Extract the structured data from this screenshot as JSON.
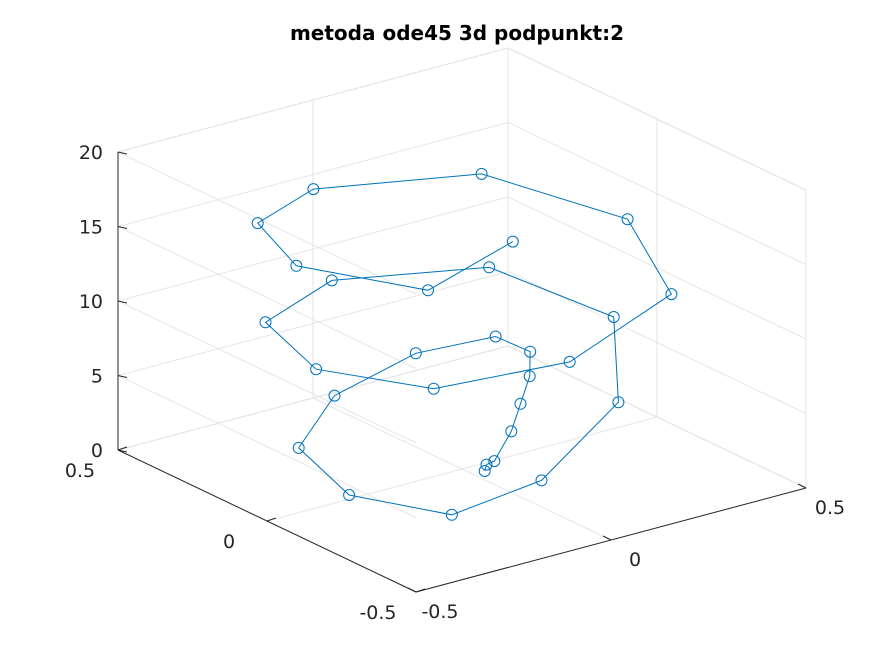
{
  "chart_data": {
    "type": "line3d",
    "title": "metoda ode45 3d podpunkt:2",
    "xlabel": "",
    "ylabel": "",
    "zlabel": "",
    "xlim": [
      -0.5,
      0.5
    ],
    "ylim": [
      -0.5,
      0.5
    ],
    "zlim": [
      0,
      20
    ],
    "xticks": [
      "-0.5",
      "0",
      "0.5"
    ],
    "yticks": [
      "-0.5",
      "0",
      "0.5"
    ],
    "zticks": [
      "0",
      "5",
      "10",
      "15",
      "20"
    ],
    "grid": true,
    "box": true,
    "line_color": "#0072BD",
    "marker": "circle",
    "series": [
      {
        "values": [
          [
            0.02,
            -0.05,
            0.2
          ],
          [
            0.04,
            -0.03,
            0.3
          ],
          [
            0.06,
            -0.03,
            0.4
          ],
          [
            0.18,
            0.07,
            0.6
          ],
          [
            0.28,
            0.17,
            0.8
          ],
          [
            0.38,
            0.27,
            1.0
          ],
          [
            0.45,
            0.36,
            1.3
          ],
          [
            0.43,
            0.45,
            1.6
          ],
          [
            0.21,
            0.43,
            2.2
          ],
          [
            -0.09,
            0.31,
            2.6
          ],
          [
            -0.35,
            0.09,
            3.0
          ],
          [
            -0.45,
            -0.21,
            3.4
          ],
          [
            -0.37,
            -0.45,
            3.8
          ],
          [
            -0.14,
            -0.45,
            4.5
          ],
          [
            0.21,
            -0.25,
            5.4
          ],
          [
            0.45,
            0.08,
            6.3
          ],
          [
            0.36,
            0.38,
            7.4
          ],
          [
            0.01,
            0.45,
            8.3
          ],
          [
            -0.29,
            0.28,
            9.2
          ],
          [
            -0.42,
            -0.06,
            10.2
          ],
          [
            -0.34,
            -0.35,
            11.1
          ],
          [
            -0.06,
            -0.44,
            11.8
          ],
          [
            0.3,
            -0.31,
            12.6
          ],
          [
            0.44,
            0.02,
            13.5
          ],
          [
            0.31,
            0.34,
            14.4
          ],
          [
            -0.06,
            0.42,
            15.2
          ],
          [
            -0.31,
            0.28,
            16.0
          ],
          [
            -0.44,
            -0.02,
            16.9
          ],
          [
            -0.37,
            -0.37,
            18.1
          ],
          [
            -0.16,
            -0.38,
            20.0
          ]
        ]
      }
    ]
  }
}
